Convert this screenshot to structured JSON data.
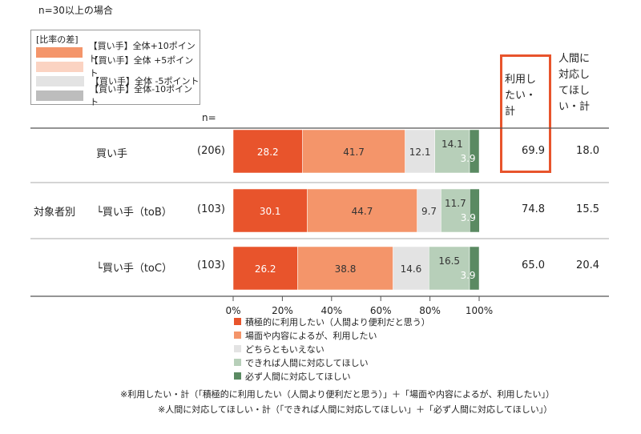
{
  "note": "n=30以上の場合",
  "diff_legend": {
    "title": "[比率の差]",
    "items": [
      {
        "label": "【買い手】全体+10ポイント",
        "color": "#f4956a"
      },
      {
        "label": "【買い手】全体 +5ポイント",
        "color": "#fbd3c2"
      },
      {
        "label": "【買い手】全体 -5ポイント",
        "color": "#e3e3e3"
      },
      {
        "label": "【買い手】全体-10ポイント",
        "color": "#bdbdbd"
      }
    ]
  },
  "n_header": "n=",
  "group_label": "対象者別",
  "summary_headers": {
    "use": [
      "利用し",
      "たい・",
      "計"
    ],
    "human": [
      "人間に",
      "対応し",
      "てほし",
      "い・計"
    ]
  },
  "chart_data": {
    "type": "bar",
    "orientation": "horizontal",
    "stacked": true,
    "categories": [
      "買い手",
      "└買い手（toB）",
      "└買い手（toC）"
    ],
    "n": [
      "(206)",
      "(103)",
      "(103)"
    ],
    "series": [
      {
        "name": "積極的に利用したい（人間より便利だと思う）",
        "color": "#e8542c",
        "values": [
          28.2,
          30.1,
          26.2
        ]
      },
      {
        "name": "場面や内容によるが、利用したい",
        "color": "#f4956a",
        "values": [
          41.7,
          44.7,
          38.8
        ]
      },
      {
        "name": "どちらともいえない",
        "color": "#e3e3e3",
        "values": [
          12.1,
          9.7,
          14.6
        ]
      },
      {
        "name": "できれば人間に対応してほしい",
        "color": "#b7cfb9",
        "values": [
          14.1,
          11.7,
          16.5
        ]
      },
      {
        "name": "必ず人間に対応してほしい",
        "color": "#5a8a62",
        "values": [
          3.9,
          3.9,
          3.9
        ]
      }
    ],
    "xlim": [
      0,
      100
    ],
    "xticks": [
      "0%",
      "20%",
      "40%",
      "60%",
      "80%",
      "100%"
    ],
    "summary_use": [
      "69.9",
      "74.8",
      "65.0"
    ],
    "summary_human": [
      "18.0",
      "15.5",
      "20.4"
    ]
  },
  "footnotes": [
    "※利用したい・計（「積極的に利用したい（人間より便利だと思う）」＋「場面や内容によるが、利用したい」）",
    "※人間に対応してほしい・計（「できれば人間に対応してほしい」＋「必ず人間に対応してほしい」）"
  ]
}
